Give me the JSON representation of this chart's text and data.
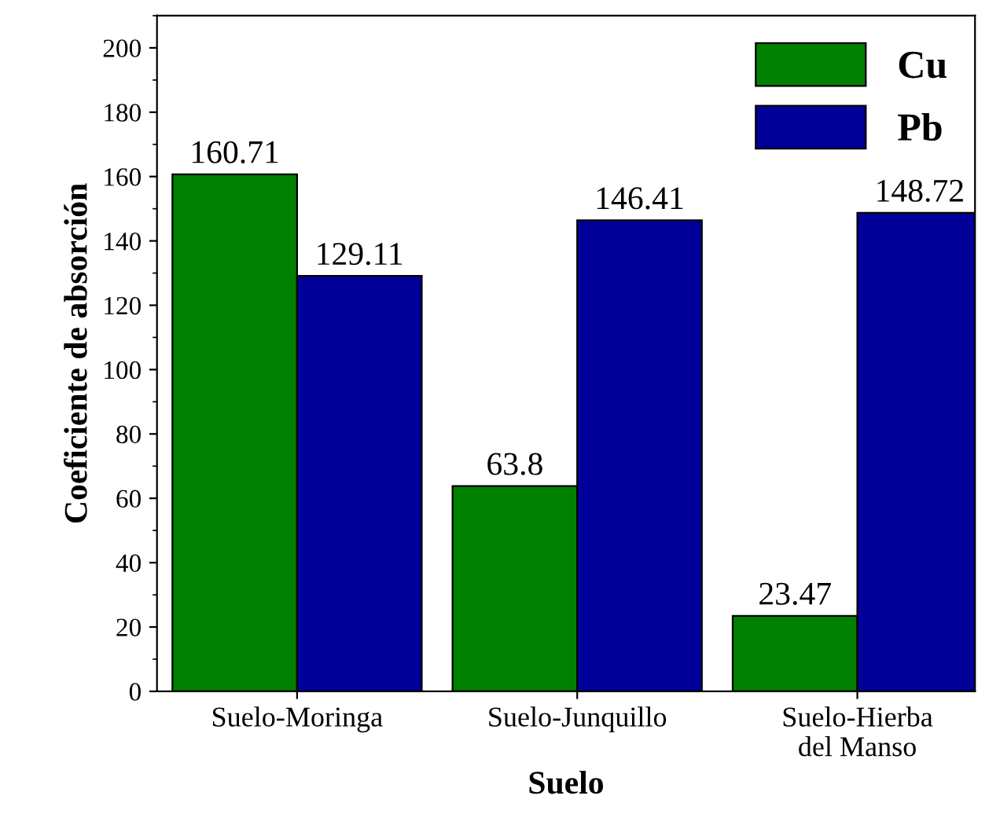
{
  "chart_data": {
    "type": "bar",
    "xlabel": "Suelo",
    "ylabel": "Coeficiente de absorción",
    "categories": [
      "Suelo-Moringa",
      "Suelo-Junquillo",
      "Suelo-Hierba\ndel Manso"
    ],
    "series": [
      {
        "name": "Cu",
        "color": "#008000",
        "values": [
          160.71,
          63.8,
          23.47
        ]
      },
      {
        "name": "Pb",
        "color": "#000099",
        "values": [
          129.11,
          146.41,
          148.72
        ]
      }
    ],
    "ylim": [
      0,
      210
    ],
    "yticks": [
      0,
      20,
      40,
      60,
      80,
      100,
      120,
      140,
      160,
      180,
      200
    ],
    "data_labels": true,
    "legend": "top right",
    "grid": false
  }
}
